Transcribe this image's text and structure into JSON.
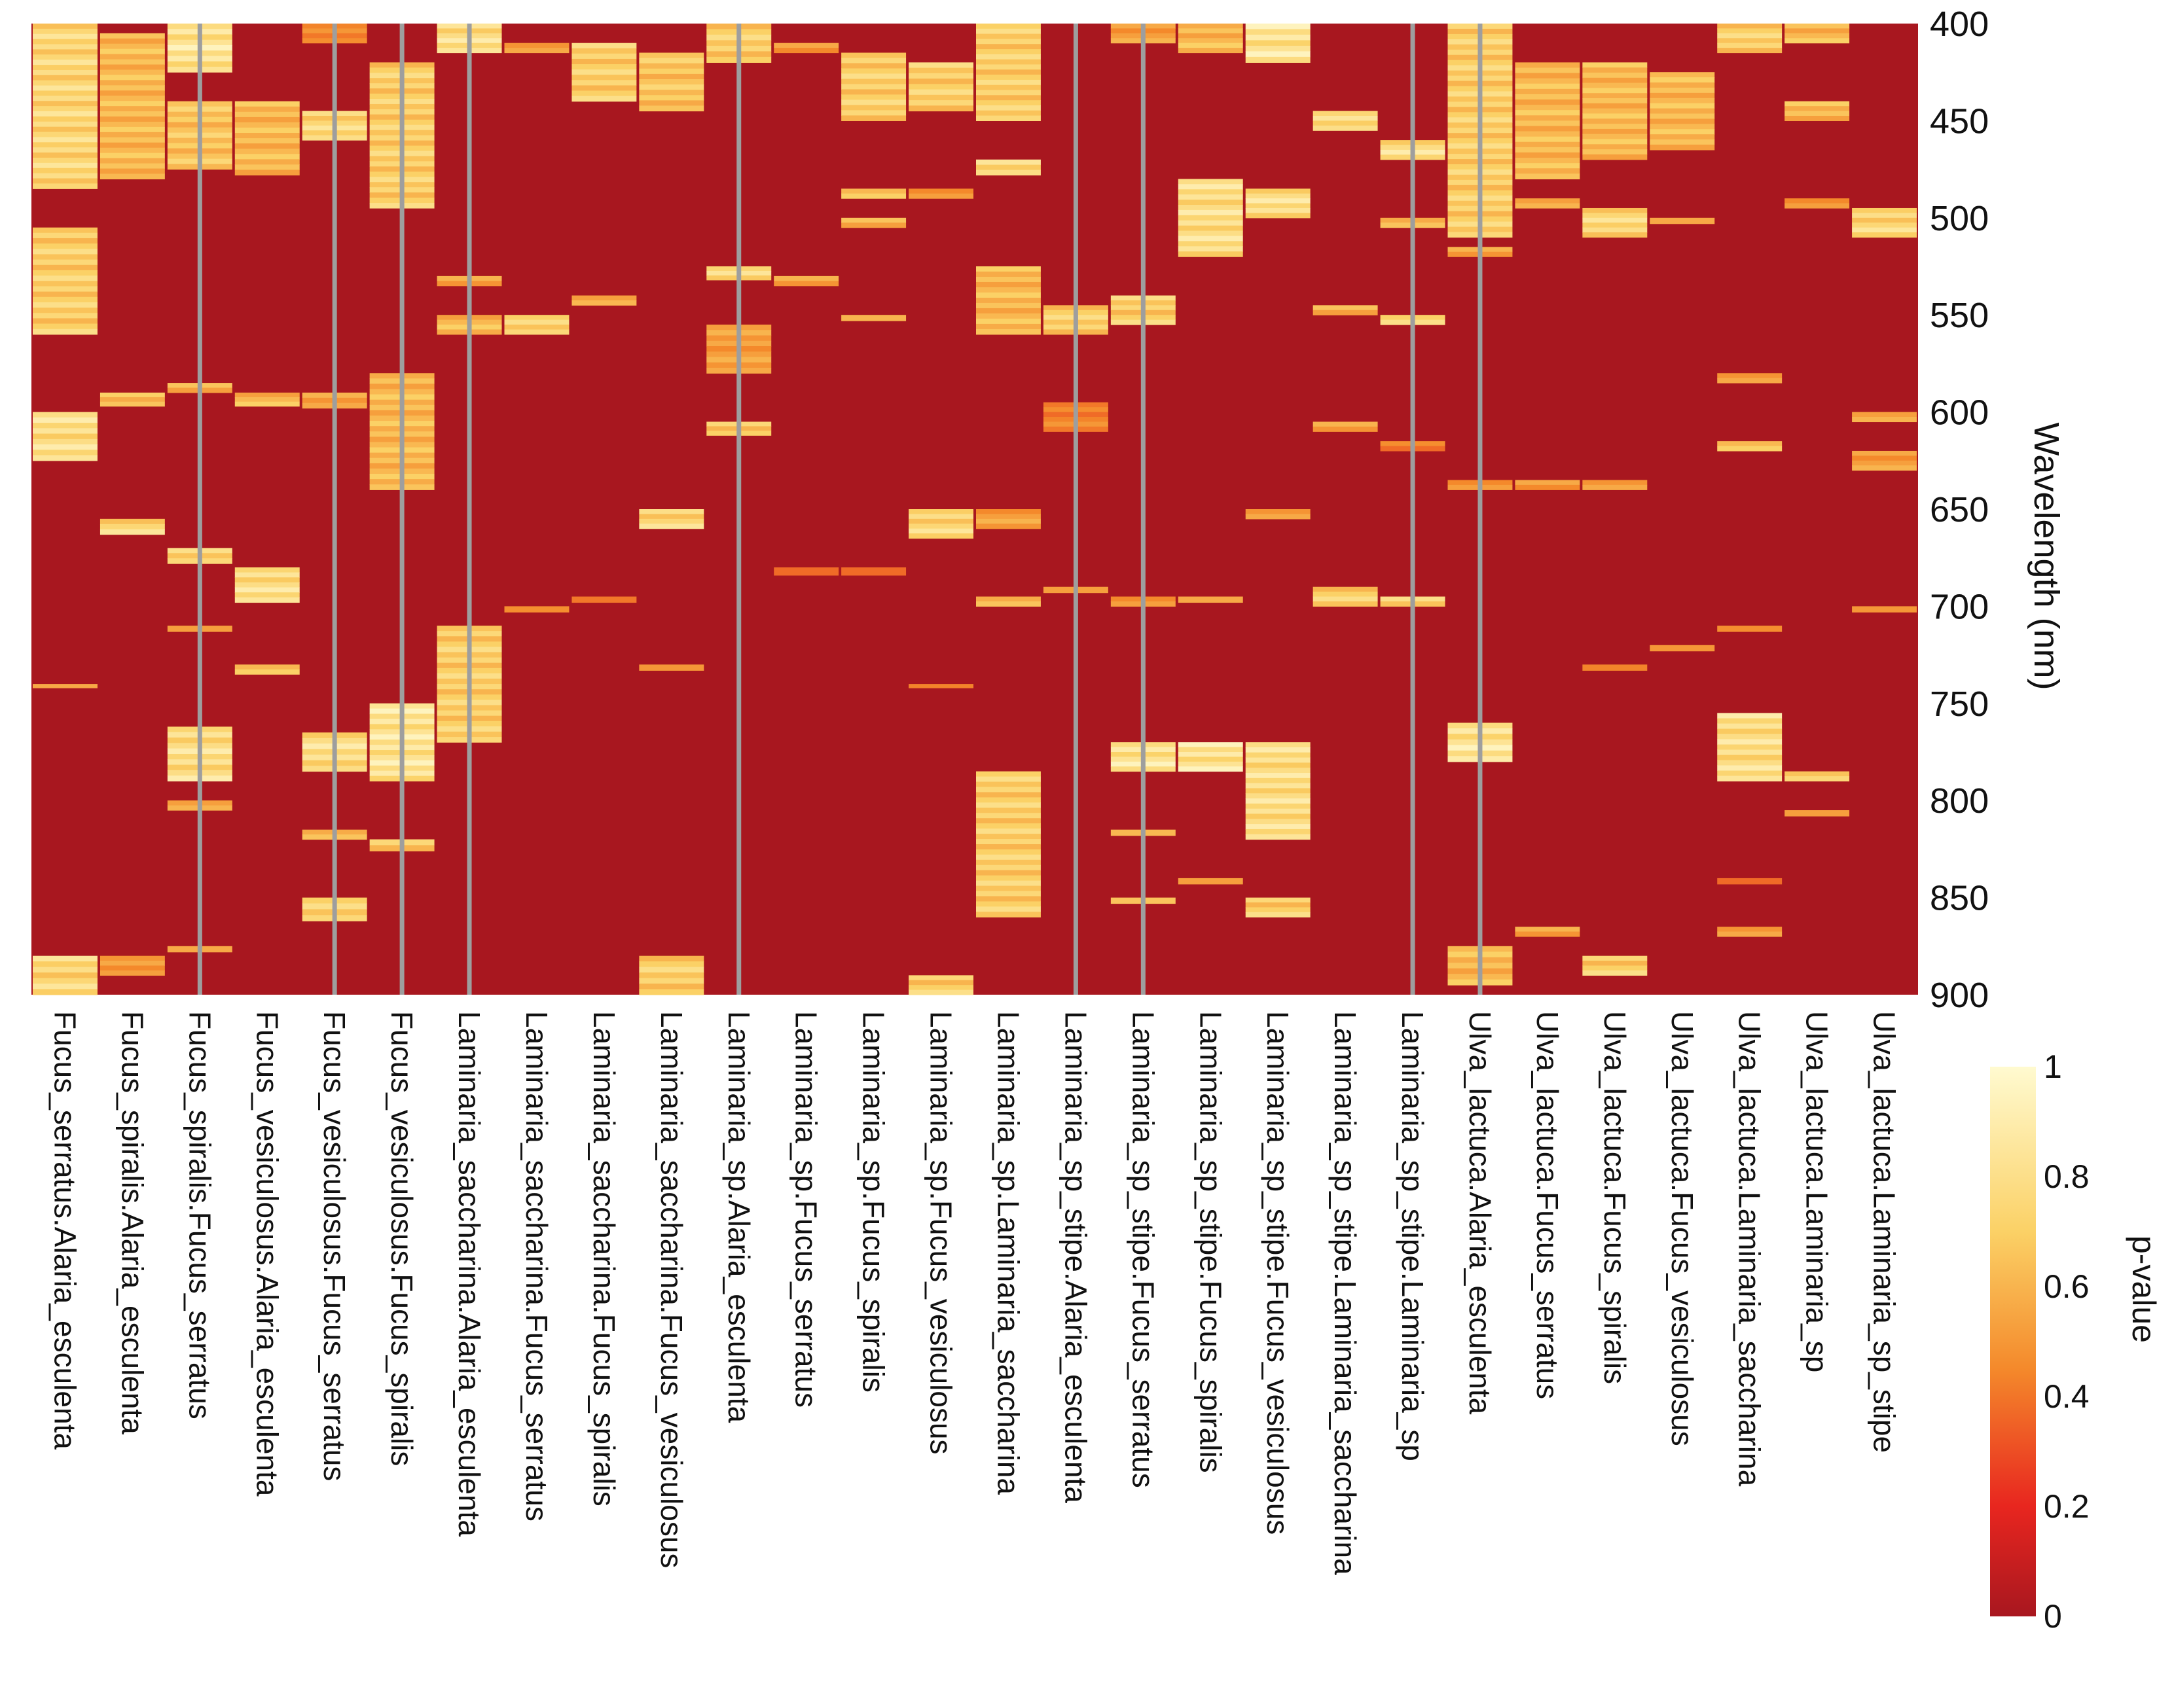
{
  "chart_data": {
    "type": "heatmap",
    "title": "",
    "xlabel": "",
    "ylabel": "Wavelength (nm)",
    "ylim": [
      400,
      900
    ],
    "yticks": [
      400,
      450,
      500,
      550,
      600,
      650,
      700,
      750,
      800,
      850,
      900
    ],
    "colorbar": {
      "label": "p-value",
      "range": [
        0,
        1
      ],
      "ticks": [
        0,
        0.2,
        0.4,
        0.6,
        0.8,
        1
      ],
      "tick_labels": [
        "0",
        "0.2",
        "0.4",
        "0.6",
        "0.8",
        "1"
      ],
      "colors": [
        "#a8171f",
        "#e8261f",
        "#f4892b",
        "#fbd166",
        "#fffad0"
      ]
    },
    "background_color": "#a8171f",
    "separator_color": "#9e9e9e",
    "separators_after_columns": [
      2,
      4,
      5,
      6,
      10,
      15,
      16,
      20,
      21
    ],
    "columns": [
      {
        "name": "Fucus_serratus.Alaria_esculenta",
        "high_bands": [
          [
            400,
            485,
            0.85
          ],
          [
            505,
            560,
            0.8
          ],
          [
            600,
            625,
            0.9
          ],
          [
            740,
            742,
            0.6
          ],
          [
            880,
            900,
            0.85
          ]
        ]
      },
      {
        "name": "Fucus_spiralis.Alaria_esculenta",
        "high_bands": [
          [
            405,
            480,
            0.7
          ],
          [
            590,
            597,
            0.7
          ],
          [
            655,
            663,
            0.85
          ],
          [
            880,
            890,
            0.6
          ]
        ]
      },
      {
        "name": "Fucus_spiralis.Fucus_serratus",
        "high_bands": [
          [
            400,
            425,
            0.95
          ],
          [
            440,
            475,
            0.75
          ],
          [
            585,
            590,
            0.7
          ],
          [
            670,
            678,
            0.8
          ],
          [
            710,
            713,
            0.7
          ],
          [
            762,
            790,
            0.9
          ],
          [
            800,
            805,
            0.6
          ],
          [
            875,
            878,
            0.6
          ]
        ]
      },
      {
        "name": "Fucus_vesiculosus.Alaria_esculenta",
        "high_bands": [
          [
            440,
            478,
            0.7
          ],
          [
            590,
            597,
            0.7
          ],
          [
            680,
            698,
            0.9
          ],
          [
            730,
            735,
            0.7
          ]
        ]
      },
      {
        "name": "Fucus_vesiculosus.Fucus_serratus",
        "high_bands": [
          [
            400,
            410,
            0.5
          ],
          [
            445,
            460,
            0.85
          ],
          [
            590,
            598,
            0.6
          ],
          [
            765,
            785,
            0.9
          ],
          [
            815,
            820,
            0.7
          ],
          [
            850,
            862,
            0.8
          ]
        ]
      },
      {
        "name": "Fucus_vesiculosus.Fucus_spiralis",
        "high_bands": [
          [
            420,
            495,
            0.8
          ],
          [
            580,
            640,
            0.7
          ],
          [
            750,
            790,
            0.95
          ],
          [
            820,
            826,
            0.8
          ]
        ]
      },
      {
        "name": "Laminaria_saccharina.Alaria_esculenta",
        "high_bands": [
          [
            400,
            415,
            0.9
          ],
          [
            530,
            535,
            0.6
          ],
          [
            550,
            560,
            0.7
          ],
          [
            710,
            770,
            0.8
          ]
        ]
      },
      {
        "name": "Laminaria_saccharina.Fucus_serratus",
        "high_bands": [
          [
            410,
            415,
            0.6
          ],
          [
            550,
            560,
            0.8
          ],
          [
            700,
            703,
            0.5
          ]
        ]
      },
      {
        "name": "Laminaria_saccharina.Fucus_spiralis",
        "high_bands": [
          [
            410,
            440,
            0.8
          ],
          [
            540,
            545,
            0.7
          ],
          [
            695,
            698,
            0.5
          ]
        ]
      },
      {
        "name": "Laminaria_saccharina.Fucus_vesiculosus",
        "high_bands": [
          [
            415,
            445,
            0.75
          ],
          [
            650,
            660,
            0.85
          ],
          [
            730,
            733,
            0.5
          ],
          [
            880,
            900,
            0.8
          ]
        ]
      },
      {
        "name": "Laminaria_sp.Alaria_esculenta",
        "high_bands": [
          [
            400,
            420,
            0.8
          ],
          [
            525,
            532,
            0.9
          ],
          [
            555,
            580,
            0.6
          ],
          [
            605,
            612,
            0.8
          ]
        ]
      },
      {
        "name": "Laminaria_sp.Fucus_serratus",
        "high_bands": [
          [
            410,
            415,
            0.6
          ],
          [
            530,
            535,
            0.6
          ],
          [
            680,
            684,
            0.5
          ]
        ]
      },
      {
        "name": "Laminaria_sp.Fucus_spiralis",
        "high_bands": [
          [
            415,
            450,
            0.8
          ],
          [
            485,
            490,
            0.7
          ],
          [
            500,
            505,
            0.7
          ],
          [
            550,
            553,
            0.6
          ],
          [
            680,
            684,
            0.5
          ]
        ]
      },
      {
        "name": "Laminaria_sp.Fucus_vesiculosus",
        "high_bands": [
          [
            420,
            445,
            0.8
          ],
          [
            485,
            490,
            0.6
          ],
          [
            650,
            665,
            0.85
          ],
          [
            740,
            742,
            0.5
          ],
          [
            890,
            900,
            0.8
          ]
        ]
      },
      {
        "name": "Laminaria_sp.Laminaria_saccharina",
        "high_bands": [
          [
            400,
            450,
            0.8
          ],
          [
            470,
            478,
            0.9
          ],
          [
            525,
            560,
            0.7
          ],
          [
            650,
            660,
            0.6
          ],
          [
            695,
            700,
            0.7
          ],
          [
            785,
            860,
            0.8
          ]
        ]
      },
      {
        "name": "Laminaria_sp_stipe.Alaria_esculenta",
        "high_bands": [
          [
            545,
            560,
            0.8
          ],
          [
            595,
            610,
            0.5
          ],
          [
            690,
            693,
            0.6
          ]
        ]
      },
      {
        "name": "Laminaria_sp_stipe.Fucus_serratus",
        "high_bands": [
          [
            400,
            410,
            0.6
          ],
          [
            540,
            555,
            0.8
          ],
          [
            695,
            700,
            0.6
          ],
          [
            770,
            785,
            0.95
          ],
          [
            815,
            818,
            0.7
          ],
          [
            850,
            853,
            0.7
          ]
        ]
      },
      {
        "name": "Laminaria_sp_stipe.Fucus_spiralis",
        "high_bands": [
          [
            400,
            415,
            0.7
          ],
          [
            480,
            520,
            0.9
          ],
          [
            695,
            698,
            0.6
          ],
          [
            770,
            785,
            0.95
          ],
          [
            840,
            843,
            0.7
          ]
        ]
      },
      {
        "name": "Laminaria_sp_stipe.Fucus_vesiculosus",
        "high_bands": [
          [
            400,
            420,
            0.95
          ],
          [
            485,
            500,
            0.9
          ],
          [
            650,
            655,
            0.6
          ],
          [
            770,
            820,
            0.9
          ],
          [
            850,
            860,
            0.8
          ]
        ]
      },
      {
        "name": "Laminaria_sp_stipe.Laminaria_saccharina",
        "high_bands": [
          [
            445,
            455,
            0.85
          ],
          [
            545,
            550,
            0.7
          ],
          [
            605,
            610,
            0.6
          ],
          [
            690,
            700,
            0.8
          ]
        ]
      },
      {
        "name": "Laminaria_sp_stipe.Laminaria_sp",
        "high_bands": [
          [
            460,
            470,
            0.9
          ],
          [
            500,
            505,
            0.7
          ],
          [
            550,
            555,
            0.8
          ],
          [
            615,
            620,
            0.5
          ],
          [
            695,
            700,
            0.8
          ]
        ]
      },
      {
        "name": "Ulva_lactuca.Alaria_esculenta",
        "high_bands": [
          [
            400,
            510,
            0.8
          ],
          [
            515,
            520,
            0.6
          ],
          [
            635,
            640,
            0.6
          ],
          [
            760,
            780,
            0.95
          ],
          [
            875,
            895,
            0.7
          ]
        ]
      },
      {
        "name": "Ulva_lactuca.Fucus_serratus",
        "high_bands": [
          [
            420,
            480,
            0.7
          ],
          [
            490,
            495,
            0.6
          ],
          [
            635,
            640,
            0.6
          ],
          [
            865,
            870,
            0.6
          ]
        ]
      },
      {
        "name": "Ulva_lactuca.Fucus_spiralis",
        "high_bands": [
          [
            420,
            470,
            0.7
          ],
          [
            495,
            510,
            0.85
          ],
          [
            635,
            640,
            0.6
          ],
          [
            730,
            733,
            0.5
          ],
          [
            880,
            890,
            0.8
          ]
        ]
      },
      {
        "name": "Ulva_lactuca.Fucus_vesiculosus",
        "high_bands": [
          [
            425,
            465,
            0.7
          ],
          [
            500,
            503,
            0.6
          ],
          [
            720,
            723,
            0.5
          ]
        ]
      },
      {
        "name": "Ulva_lactuca.Laminaria_saccharina",
        "high_bands": [
          [
            400,
            415,
            0.8
          ],
          [
            580,
            585,
            0.6
          ],
          [
            615,
            620,
            0.7
          ],
          [
            710,
            713,
            0.5
          ],
          [
            755,
            790,
            0.9
          ],
          [
            840,
            843,
            0.5
          ],
          [
            865,
            870,
            0.6
          ]
        ]
      },
      {
        "name": "Ulva_lactuca.Laminaria_sp",
        "high_bands": [
          [
            400,
            410,
            0.7
          ],
          [
            440,
            450,
            0.7
          ],
          [
            490,
            495,
            0.6
          ],
          [
            785,
            790,
            0.8
          ],
          [
            805,
            808,
            0.6
          ]
        ]
      },
      {
        "name": "Ulva_lactuca.Laminaria_sp_stipe",
        "high_bands": [
          [
            495,
            510,
            0.85
          ],
          [
            600,
            605,
            0.6
          ],
          [
            620,
            630,
            0.6
          ],
          [
            700,
            703,
            0.5
          ]
        ]
      }
    ]
  }
}
